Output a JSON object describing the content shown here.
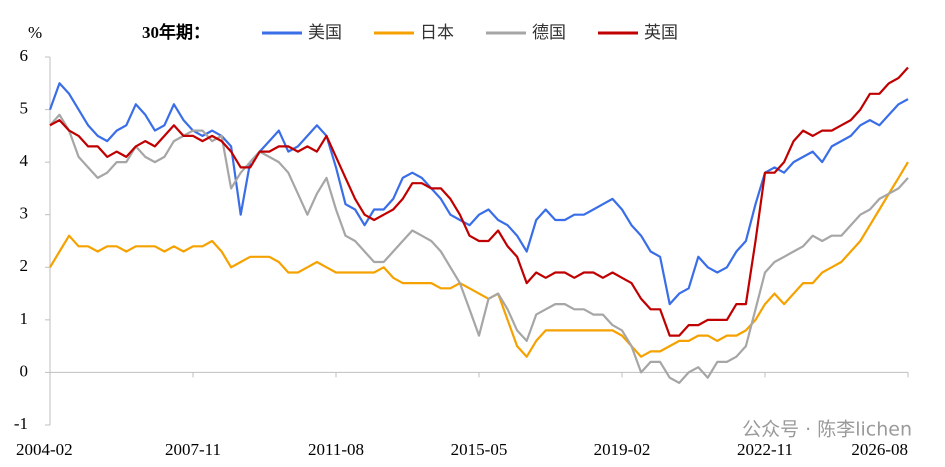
{
  "chart_data": {
    "type": "line",
    "legend_title": "30年期：",
    "y_label": "%",
    "watermark": "公众号 · 陈李lichen",
    "xlim": [
      "2004-02",
      "2026-08"
    ],
    "xticks": [
      "2004-02",
      "2007-11",
      "2011-08",
      "2015-05",
      "2019-02",
      "2022-11",
      "2026-08"
    ],
    "ylim": [
      -1,
      6
    ],
    "yticks": [
      -1,
      0,
      1,
      2,
      3,
      4,
      5,
      6
    ],
    "x": [
      "2004-02",
      "2004-05",
      "2004-08",
      "2004-11",
      "2005-02",
      "2005-05",
      "2005-08",
      "2005-11",
      "2006-02",
      "2006-05",
      "2006-08",
      "2006-11",
      "2007-02",
      "2007-05",
      "2007-08",
      "2007-11",
      "2008-02",
      "2008-05",
      "2008-08",
      "2008-11",
      "2009-02",
      "2009-05",
      "2009-08",
      "2009-11",
      "2010-02",
      "2010-05",
      "2010-08",
      "2010-11",
      "2011-02",
      "2011-05",
      "2011-08",
      "2011-11",
      "2012-02",
      "2012-05",
      "2012-08",
      "2012-11",
      "2013-02",
      "2013-05",
      "2013-08",
      "2013-11",
      "2014-02",
      "2014-05",
      "2014-08",
      "2014-11",
      "2015-02",
      "2015-05",
      "2015-08",
      "2015-11",
      "2016-02",
      "2016-05",
      "2016-08",
      "2016-11",
      "2017-02",
      "2017-05",
      "2017-08",
      "2017-11",
      "2018-02",
      "2018-05",
      "2018-08",
      "2018-11",
      "2019-02",
      "2019-05",
      "2019-08",
      "2019-11",
      "2020-02",
      "2020-05",
      "2020-08",
      "2020-11",
      "2021-02",
      "2021-05",
      "2021-08",
      "2021-11",
      "2022-02",
      "2022-05",
      "2022-08",
      "2022-11",
      "2023-02",
      "2023-05",
      "2023-08",
      "2023-11",
      "2024-02",
      "2024-05",
      "2024-08",
      "2024-11",
      "2025-02",
      "2025-05",
      "2025-08",
      "2025-11",
      "2026-02",
      "2026-05",
      "2026-08"
    ],
    "series": [
      {
        "name": "美国",
        "color": "#3a6ee8",
        "values": [
          5.0,
          5.5,
          5.3,
          5.0,
          4.7,
          4.5,
          4.4,
          4.6,
          4.7,
          5.1,
          4.9,
          4.6,
          4.7,
          5.1,
          4.8,
          4.6,
          4.5,
          4.6,
          4.5,
          4.3,
          3.0,
          4.0,
          4.2,
          4.4,
          4.6,
          4.2,
          4.3,
          4.5,
          4.7,
          4.5,
          3.9,
          3.2,
          3.1,
          2.8,
          3.1,
          3.1,
          3.3,
          3.7,
          3.8,
          3.7,
          3.5,
          3.3,
          3.0,
          2.9,
          2.8,
          3.0,
          3.1,
          2.9,
          2.8,
          2.6,
          2.3,
          2.9,
          3.1,
          2.9,
          2.9,
          3.0,
          3.0,
          3.1,
          3.2,
          3.3,
          3.1,
          2.8,
          2.6,
          2.3,
          2.2,
          1.3,
          1.5,
          1.6,
          2.2,
          2.0,
          1.9,
          2.0,
          2.3,
          2.5,
          3.2,
          3.8,
          3.9,
          3.8,
          4.0,
          4.1,
          4.2,
          4.0,
          4.3,
          4.4,
          4.5,
          4.7,
          4.8,
          4.7,
          4.9,
          5.1,
          5.2
        ]
      },
      {
        "name": "日本",
        "color": "#f5a200",
        "values": [
          2.0,
          2.3,
          2.6,
          2.4,
          2.4,
          2.3,
          2.4,
          2.4,
          2.3,
          2.4,
          2.4,
          2.4,
          2.3,
          2.4,
          2.3,
          2.4,
          2.4,
          2.5,
          2.3,
          2.0,
          2.1,
          2.2,
          2.2,
          2.2,
          2.1,
          1.9,
          1.9,
          2.0,
          2.1,
          2.0,
          1.9,
          1.9,
          1.9,
          1.9,
          1.9,
          2.0,
          1.8,
          1.7,
          1.7,
          1.7,
          1.7,
          1.6,
          1.6,
          1.7,
          1.6,
          1.5,
          1.4,
          1.5,
          1.0,
          0.5,
          0.3,
          0.6,
          0.8,
          0.8,
          0.8,
          0.8,
          0.8,
          0.8,
          0.8,
          0.8,
          0.7,
          0.5,
          0.3,
          0.4,
          0.4,
          0.5,
          0.6,
          0.6,
          0.7,
          0.7,
          0.6,
          0.7,
          0.7,
          0.8,
          1.0,
          1.3,
          1.5,
          1.3,
          1.5,
          1.7,
          1.7,
          1.9,
          2.0,
          2.1,
          2.3,
          2.5,
          2.8,
          3.1,
          3.4,
          3.7,
          4.0
        ]
      },
      {
        "name": "德国",
        "color": "#a6a6a6",
        "values": [
          4.7,
          4.9,
          4.6,
          4.1,
          3.9,
          3.7,
          3.8,
          4.0,
          4.0,
          4.3,
          4.1,
          4.0,
          4.1,
          4.4,
          4.5,
          4.6,
          4.6,
          4.4,
          4.5,
          3.5,
          3.8,
          4.0,
          4.2,
          4.1,
          4.0,
          3.8,
          3.4,
          3.0,
          3.4,
          3.7,
          3.1,
          2.6,
          2.5,
          2.3,
          2.1,
          2.1,
          2.3,
          2.5,
          2.7,
          2.6,
          2.5,
          2.3,
          2.0,
          1.7,
          1.2,
          0.7,
          1.4,
          1.5,
          1.2,
          0.8,
          0.6,
          1.1,
          1.2,
          1.3,
          1.3,
          1.2,
          1.2,
          1.1,
          1.1,
          0.9,
          0.8,
          0.5,
          0.0,
          0.2,
          0.2,
          -0.1,
          -0.2,
          0.0,
          0.1,
          -0.1,
          0.2,
          0.2,
          0.3,
          0.5,
          1.2,
          1.9,
          2.1,
          2.2,
          2.3,
          2.4,
          2.6,
          2.5,
          2.6,
          2.6,
          2.8,
          3.0,
          3.1,
          3.3,
          3.4,
          3.5,
          3.7
        ]
      },
      {
        "name": "英国",
        "color": "#c00000",
        "values": [
          4.7,
          4.8,
          4.6,
          4.5,
          4.3,
          4.3,
          4.1,
          4.2,
          4.1,
          4.3,
          4.4,
          4.3,
          4.5,
          4.7,
          4.5,
          4.5,
          4.4,
          4.5,
          4.4,
          4.2,
          3.9,
          3.9,
          4.2,
          4.2,
          4.3,
          4.3,
          4.2,
          4.3,
          4.2,
          4.5,
          4.1,
          3.7,
          3.3,
          3.0,
          2.9,
          3.0,
          3.1,
          3.3,
          3.6,
          3.6,
          3.5,
          3.5,
          3.3,
          3.0,
          2.6,
          2.5,
          2.5,
          2.7,
          2.4,
          2.2,
          1.7,
          1.9,
          1.8,
          1.9,
          1.9,
          1.8,
          1.9,
          1.9,
          1.8,
          1.9,
          1.8,
          1.7,
          1.4,
          1.2,
          1.2,
          0.7,
          0.7,
          0.9,
          0.9,
          1.0,
          1.0,
          1.0,
          1.3,
          1.3,
          2.5,
          3.8,
          3.8,
          4.0,
          4.4,
          4.6,
          4.5,
          4.6,
          4.6,
          4.7,
          4.8,
          5.0,
          5.3,
          5.3,
          5.5,
          5.6,
          5.8
        ]
      }
    ]
  }
}
